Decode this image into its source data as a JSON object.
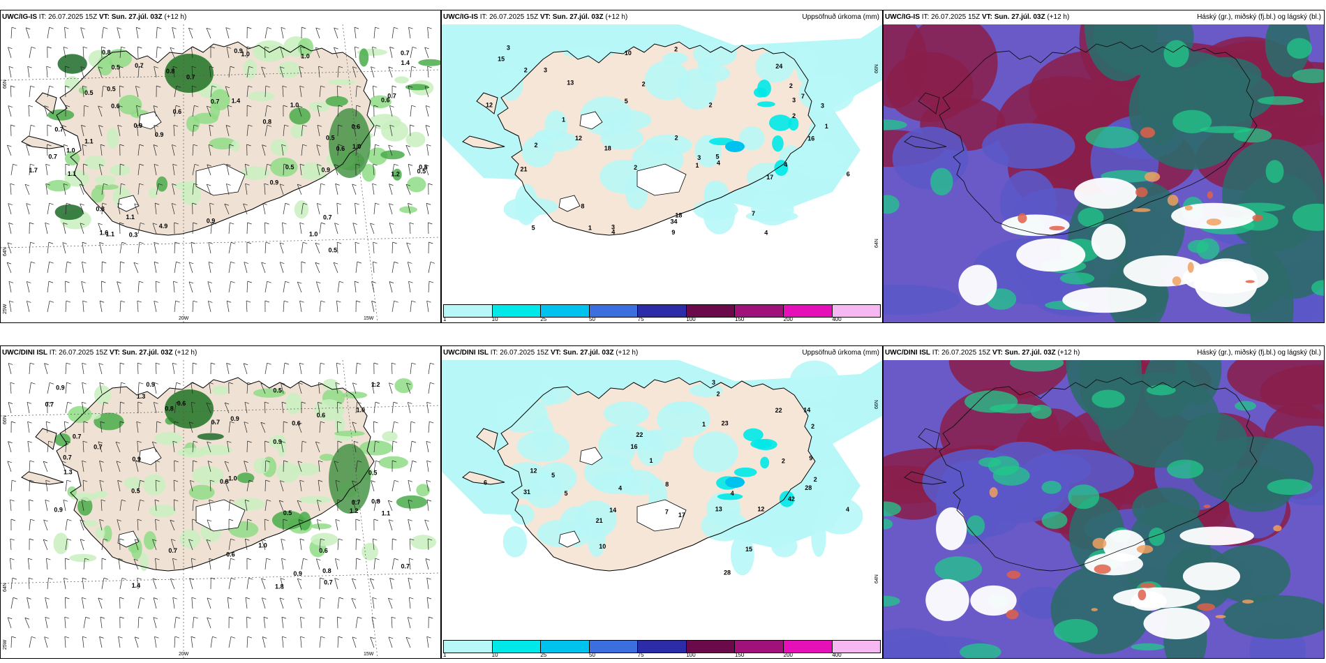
{
  "panels": [
    {
      "id": "igis-wind",
      "model": "UWC/IG-IS",
      "it_label": "IT:",
      "it_value": "26.07.2025 15Z",
      "vt_label": "VT:",
      "vt_value": "Sun. 27.júl. 03Z",
      "lead": "(+12 h)",
      "right_title": "",
      "lat_labels": [
        "66N",
        "64N"
      ],
      "lon_labels": [
        "20W",
        "15W",
        "25W"
      ],
      "values": [
        "1.4",
        "0.9",
        "0.6",
        "0.9",
        "0.7",
        "4.9",
        "0.9",
        "1.0",
        "0.7",
        "1.6",
        "0.6",
        "0.6",
        "0.7",
        "1.1",
        "0.8",
        "0.7",
        "1.0",
        "0.6",
        "0.5",
        "0.7",
        "0.8",
        "0.9",
        "1.1",
        "1.2",
        "0.9",
        "0.5",
        "0.7",
        "0.3",
        "0.5",
        "1.0",
        "0.7",
        "0.5",
        "0.8",
        "1.0",
        "0.7",
        "1.1",
        "1.0",
        "1.4",
        "1.7",
        "0.9",
        "0.5",
        "0.8",
        "0.6",
        "0.5",
        "1.1",
        "0.8",
        "1.0",
        "0.5"
      ]
    },
    {
      "id": "igis-precip",
      "model": "UWC/IG-IS",
      "it_label": "IT:",
      "it_value": "26.07.2025 15Z",
      "vt_label": "VT:",
      "vt_value": "Sun. 27.júl. 03Z",
      "lead": "(+12 h)",
      "right_title": "Uppsöfnuð úrkoma (mm)",
      "lat_labels": [
        "66N",
        "64N"
      ],
      "values": [
        "1",
        "4",
        "2",
        "3",
        "2",
        "2",
        "1",
        "2",
        "3",
        "12",
        "16",
        "24",
        "18",
        "13",
        "21",
        "34",
        "17",
        "10",
        "5",
        "7",
        "6",
        "9",
        "3",
        "8",
        "12",
        "15",
        "18",
        "3",
        "4",
        "2",
        "2",
        "5",
        "3",
        "2",
        "1",
        "1",
        "4",
        "3",
        "2",
        "5",
        "2",
        "4",
        "7"
      ],
      "legend": {
        "colors": [
          "#b8f7f7",
          "#00e8e8",
          "#00c2ee",
          "#3b6fe0",
          "#2c2ca8",
          "#6b0a4a",
          "#a0127a",
          "#e610b8",
          "#f5b8f0"
        ],
        "ticks": [
          "1",
          "10",
          "25",
          "50",
          "75",
          "100",
          "150",
          "200",
          "400"
        ]
      }
    },
    {
      "id": "igis-cloud",
      "model": "UWC/IG-IS",
      "it_label": "IT:",
      "it_value": "26.07.2025 15Z",
      "vt_label": "VT:",
      "vt_value": "Sun. 27.júl. 03Z",
      "lead": "(+12 h)",
      "right_title": "Háský (gr.), miðský (fj.bl.) og lágský (bl.)"
    },
    {
      "id": "dini-wind",
      "model": "UWC/DINI ISL",
      "it_label": "IT:",
      "it_value": "26.07.2025 15Z",
      "vt_label": "VT:",
      "vt_value": "Sun. 27.júl. 03Z",
      "lead": "(+12 h)",
      "right_title": "",
      "lat_labels": [
        "66N",
        "64N"
      ],
      "lon_labels": [
        "20W",
        "15W",
        "25W"
      ],
      "values": [
        "0.9",
        "1.4",
        "0.9",
        "0.5",
        "0.7",
        "0.9",
        "0.6",
        "1.1",
        "0.8",
        "1.8",
        "0.7",
        "0.9",
        "0.7",
        "1.0",
        "0.8",
        "0.9",
        "0.5",
        "0.5",
        "0.7",
        "0.6",
        "0.7",
        "1.0",
        "0.6",
        "0.6",
        "1.3",
        "0.9",
        "0.7",
        "1.0",
        "0.8",
        "0.7",
        "0.9",
        "1.3",
        "0.5",
        "0.7",
        "1.2",
        "0.6",
        "0.7",
        "1.2",
        "0.8"
      ]
    },
    {
      "id": "dini-precip",
      "model": "UWC/DINI ISL",
      "it_label": "IT:",
      "it_value": "26.07.2025 15Z",
      "vt_label": "VT:",
      "vt_value": "Sun. 27.júl. 03Z",
      "lead": "(+12 h)",
      "right_title": "Uppsöfnuð úrkoma (mm)",
      "lat_labels": [
        "66N",
        "64N"
      ],
      "values": [
        "4",
        "2",
        "12",
        "5",
        "8",
        "1",
        "14",
        "13",
        "31",
        "21",
        "23",
        "22",
        "42",
        "28",
        "15",
        "22",
        "28",
        "14",
        "17",
        "10",
        "3",
        "4",
        "5",
        "2",
        "2",
        "1",
        "7",
        "4",
        "9",
        "12",
        "2",
        "16",
        "6"
      ],
      "legend": {
        "colors": [
          "#b8f7f7",
          "#00e8e8",
          "#00c2ee",
          "#3b6fe0",
          "#2c2ca8",
          "#6b0a4a",
          "#a0127a",
          "#e610b8",
          "#f5b8f0"
        ],
        "ticks": [
          "1",
          "10",
          "25",
          "50",
          "75",
          "100",
          "150",
          "200",
          "400"
        ]
      }
    },
    {
      "id": "dini-cloud",
      "model": "UWC/DINI ISL",
      "it_label": "IT:",
      "it_value": "26.07.2025 15Z",
      "vt_label": "VT:",
      "vt_value": "Sun. 27.júl. 03Z",
      "lead": "(+12 h)",
      "right_title": "Háský (gr.), miðský (fj.bl.) og lágský (bl.)"
    }
  ]
}
